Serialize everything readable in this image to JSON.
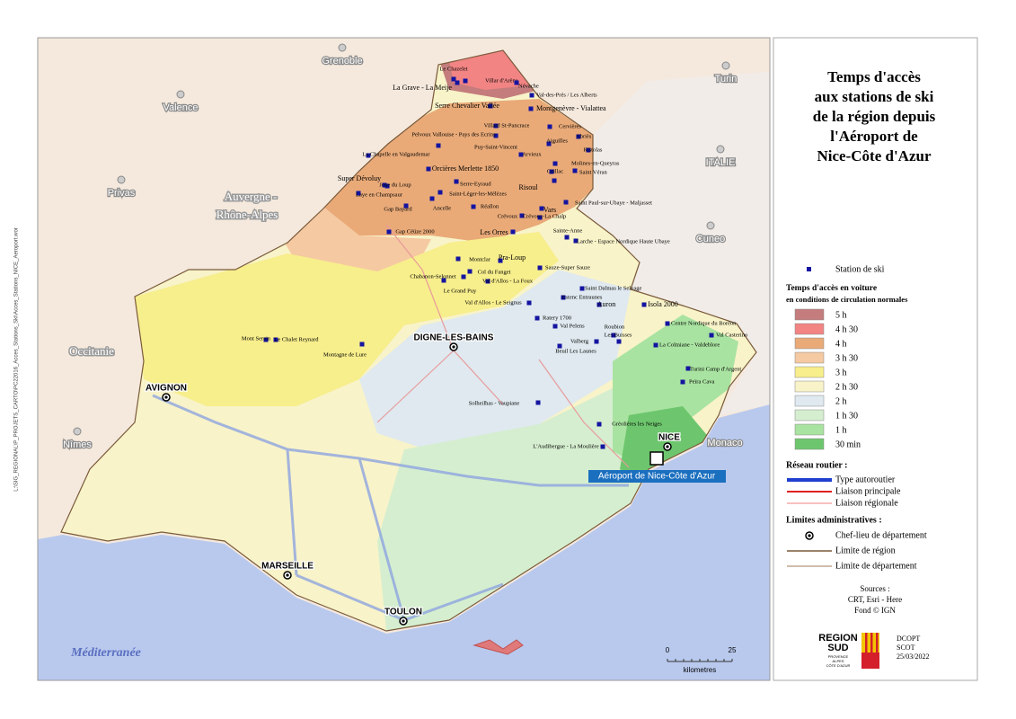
{
  "title": [
    "Temps d'accès",
    "aux stations de ski",
    "de la région depuis",
    "l'Aéroport de",
    "Nice-Côte d'Azur"
  ],
  "legend": {
    "station": "Station de ski",
    "time_heading": "Temps d'accès en voiture",
    "time_sub": "en conditions de circulation normales",
    "times": [
      {
        "label": "5 h",
        "color": "#c47c7c"
      },
      {
        "label": "4  h  30",
        "color": "#f28484"
      },
      {
        "label": "4 h",
        "color": "#e9aa78"
      },
      {
        "label": "3  h  30",
        "color": "#f5c9a1"
      },
      {
        "label": "3 h",
        "color": "#f7ee8c"
      },
      {
        "label": "2  h  30",
        "color": "#f8f3c9"
      },
      {
        "label": "2 h",
        "color": "#dfe9ef"
      },
      {
        "label": "1  h  30",
        "color": "#d5eecf"
      },
      {
        "label": "1 h",
        "color": "#a9e3a1"
      },
      {
        "label": "30 min",
        "color": "#6dc66d"
      }
    ],
    "roads_heading": "Réseau routier :",
    "roads": [
      {
        "label": "Type autoroutier",
        "color": "#1f3fcf"
      },
      {
        "label": "Liaison principale",
        "color": "#e02020"
      },
      {
        "label": "Liaison régionale",
        "color": "#f08080"
      }
    ],
    "admin_heading": "Limites administratives :",
    "admin": [
      "Chef-lieu de département",
      "Limite de région",
      "Limite de département"
    ],
    "sources": [
      "Sources :",
      "CRT, Esri - Here",
      "Fond © IGN"
    ]
  },
  "logo": {
    "name": [
      "REGION",
      "SUD"
    ],
    "tag": [
      "PROVENCE",
      "ALPES",
      "CÔTE D'AZUR"
    ],
    "credits": [
      "DCOPT",
      "SCOT",
      "25/03/2022"
    ]
  },
  "scale": {
    "labels": [
      "0",
      "25"
    ],
    "unit": "kilometres"
  },
  "file_path": "L:\\SIG_REGIONAL\\P_PROJETS_CARTO\\PC22016_Acces_Stations_Ski\\Acces_Stations_NICE_Aeroport.wor",
  "places": [
    "Grenoble",
    "Valence",
    "Privas",
    "Nîmes",
    "Turin",
    "Cuneo",
    "ITALIE",
    "Auvergne -",
    "Rhône-Alpes",
    "Occitanie",
    "Monaco"
  ],
  "prefectures": [
    "AVIGNON",
    "DIGNE-LES-BAINS",
    "NICE",
    "MARSEILLE",
    "TOULON"
  ],
  "sea": "Méditerranée",
  "airport": "Aéroport de Nice-Côte d'Azur",
  "stations": [
    "Le Chazelet",
    "Villar d'Arène",
    "La Grave - La Meije",
    "Névache",
    "Serre Chevalier Vallée",
    "Val-des-Prés / Les Alberts",
    "Montgenèvre - Vialattea",
    "Villard St-Pancrace",
    "Cervières",
    "Pelvoux Vallouise - Pays des Ecrins",
    "Abriès",
    "Puy-Saint-Vincent",
    "Aiguilles",
    "Ristolas",
    "La Chapelle en Valgaudemar",
    "Arvieux",
    "Molines-en-Queyras",
    "Orcières Merlette 1850",
    "Saint Véran",
    "Ceillac",
    "Super Dévoluy",
    "Joue du Loup",
    "Serre-Eyraud",
    "Risoul",
    "Laye en Champsaur",
    "Saint-Léger-les-Mélèzes",
    "Saint Paul-sur-Ubaye - Maljasset",
    "Gap Bayard",
    "Ancelle",
    "Réallon",
    "Vars",
    "Crévoux",
    "Crévoux-La Chalp",
    "Gap Céüze 2000",
    "Les Orres",
    "Sainte-Anne",
    "Larche - Espace Nordique Haute Ubaye",
    "Montclar",
    "Pra-Loup",
    "Col du Fanget",
    "Sauze-Super Sauze",
    "Chabanon-Selonnet",
    "Val d'Allos - La Foux",
    "Saint Dalmas le Selvage",
    "Le Grand Puy",
    "Estenc Entraunes",
    "Val d'Allos - Le Seignus",
    "Auron",
    "Isola 2000",
    "Ratery 1700",
    "Centre Nordique du Boréon",
    "Val Pelens",
    "Roubion",
    "Val Casterino",
    "Mont Serein",
    "Le Chalet Reynard",
    "Valberg",
    "Les Buisses",
    "La Colmiane - Valdeblore",
    "Beuil Les Launes",
    "Montagne de Lure",
    "Turini Camp d'Argent",
    "Peïra Cava",
    "Solheilhas - Vaupiane",
    "Gréolières les Neiges",
    "L'Audibergue - La Moulière"
  ]
}
